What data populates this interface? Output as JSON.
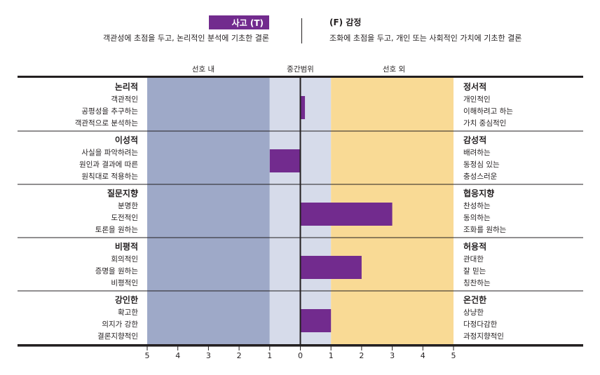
{
  "header": {
    "thinking_label": "사고 (T)",
    "thinking_desc": "객관성에 초점을 두고, 논리적인 분석에 기초한 결론",
    "feeling_label": "(F) 감정",
    "feeling_desc": "조화에 초점을 두고, 개인 또는 사회적인 가치에 기초한 결론"
  },
  "chart_data": {
    "type": "bar",
    "orientation": "horizontal-diverging",
    "zone_labels": [
      "선호 내",
      "중간범위",
      "선호 외"
    ],
    "x_ticks": [
      "5",
      "4",
      "3",
      "2",
      "1",
      "0",
      "1",
      "2",
      "3",
      "4",
      "5"
    ],
    "xlim": [
      -5,
      5
    ],
    "zones": {
      "left_preference": [
        -5,
        -1
      ],
      "midzone": [
        -1,
        1
      ],
      "right_preference": [
        1,
        5
      ]
    },
    "colors": {
      "bar": "#722b8e",
      "left_zone": "#9ea9c8",
      "mid_zone": "#d6dbea",
      "right_zone": "#f9da95"
    },
    "facets": [
      {
        "left_title": "논리적",
        "left_items": [
          "객관적인",
          "공평성을 추구하는",
          "객관적으로 분석하는"
        ],
        "right_title": "정서적",
        "right_items": [
          "개인적인",
          "이해하려고 하는",
          "가치 중심적인"
        ],
        "value": 0.15
      },
      {
        "left_title": "이성적",
        "left_items": [
          "사실을 파악하려는",
          "원인과 결과에 따른",
          "원칙대로 적용하는"
        ],
        "right_title": "감성적",
        "right_items": [
          "배려하는",
          "동정심 있는",
          "충성스러운"
        ],
        "value": -1.0
      },
      {
        "left_title": "질문지향",
        "left_items": [
          "분명한",
          "도전적인",
          "토론을 원하는"
        ],
        "right_title": "협응지향",
        "right_items": [
          "찬성하는",
          "동의하는",
          "조화를 원하는"
        ],
        "value": 3.0
      },
      {
        "left_title": "비평적",
        "left_items": [
          "회의적인",
          "증명을 원하는",
          "비평적인"
        ],
        "right_title": "허용적",
        "right_items": [
          "관대한",
          "잘 믿는",
          "칭찬하는"
        ],
        "value": 2.0
      },
      {
        "left_title": "강인한",
        "left_items": [
          "확고한",
          "의지가 강한",
          "결론지향적인"
        ],
        "right_title": "온건한",
        "right_items": [
          "상냥한",
          "다정다감한",
          "과정지향적인"
        ],
        "value": 1.0
      }
    ]
  }
}
